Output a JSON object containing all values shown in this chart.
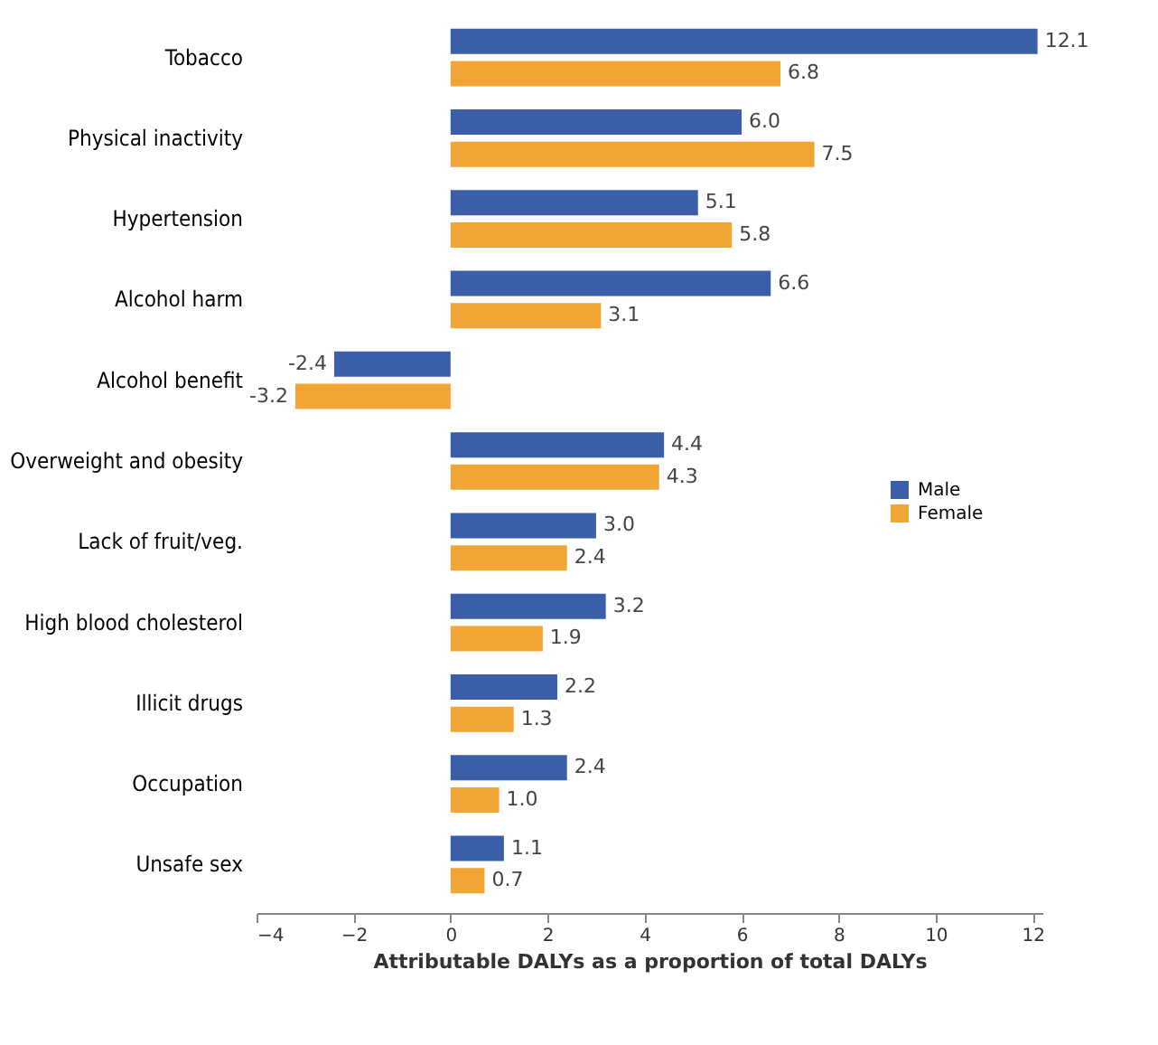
{
  "chart_data": {
    "type": "bar",
    "orientation": "horizontal",
    "xlabel": "Attributable DALYs as a proportion of total DALYs",
    "categories": [
      "Tobacco",
      "Physical inactivity",
      "Hypertension",
      "Alcohol harm",
      "Alcohol benefit",
      "Overweight and obesity",
      "Lack of fruit/veg.",
      "High blood cholesterol",
      "Illicit drugs",
      "Occupation",
      "Unsafe sex"
    ],
    "series": [
      {
        "name": "Male",
        "color": "#3b5ea8",
        "values": [
          12.1,
          6.0,
          5.1,
          6.6,
          -2.4,
          4.4,
          3.0,
          3.2,
          2.2,
          2.4,
          1.1
        ],
        "value_labels": [
          "12.1",
          "6.0",
          "5.1",
          "6.6",
          "-2.4",
          "4.4",
          "3.0",
          "3.2",
          "2.2",
          "2.4",
          "1.1"
        ]
      },
      {
        "name": "Female",
        "color": "#f0a535",
        "values": [
          6.8,
          7.5,
          5.8,
          3.1,
          -3.2,
          4.3,
          2.4,
          1.9,
          1.3,
          1.0,
          0.7
        ],
        "value_labels": [
          "6.8",
          "7.5",
          "5.8",
          "3.1",
          "-3.2",
          "4.3",
          "2.4",
          "1.9",
          "1.3",
          "1.0",
          "0.7"
        ]
      }
    ],
    "xlim": [
      -4,
      12.2
    ],
    "xticks": [
      -4,
      -2,
      0,
      2,
      4,
      6,
      8,
      10,
      12
    ],
    "legend": "right",
    "grid": false
  }
}
